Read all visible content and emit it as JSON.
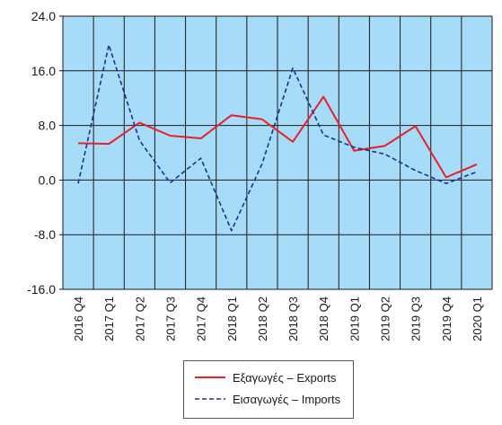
{
  "chart_data": {
    "type": "line",
    "categories": [
      "2016 Q4",
      "2017 Q1",
      "2017 Q2",
      "2017 Q3",
      "2017 Q4",
      "2018 Q1",
      "2018 Q2",
      "2018 Q3",
      "2018 Q4",
      "2019 Q1",
      "2019 Q2",
      "2019 Q3",
      "2019 Q4",
      "2020 Q1"
    ],
    "series": [
      {
        "name": "Εξαγωγές – Exports",
        "color": "#e8202a",
        "dash": "solid",
        "values": [
          5.4,
          5.3,
          8.4,
          6.5,
          6.1,
          9.5,
          8.9,
          5.6,
          12.2,
          4.3,
          5.0,
          7.9,
          0.4,
          2.3
        ]
      },
      {
        "name": "Εισαγωγές – Imports",
        "color": "#1f2f8f",
        "dash": "dashed",
        "values": [
          -0.5,
          19.8,
          5.8,
          -0.4,
          3.2,
          -7.4,
          2.4,
          16.4,
          6.6,
          4.8,
          3.8,
          1.4,
          -0.5,
          1.2
        ]
      }
    ],
    "y_ticks": [
      "24.0",
      "16.0",
      "8.0",
      "0.0",
      "-8.0",
      "-16.0"
    ],
    "ylim": [
      -16,
      24
    ],
    "grid": true,
    "background_color": "#a6dcf7",
    "legend_position": "bottom-center"
  }
}
